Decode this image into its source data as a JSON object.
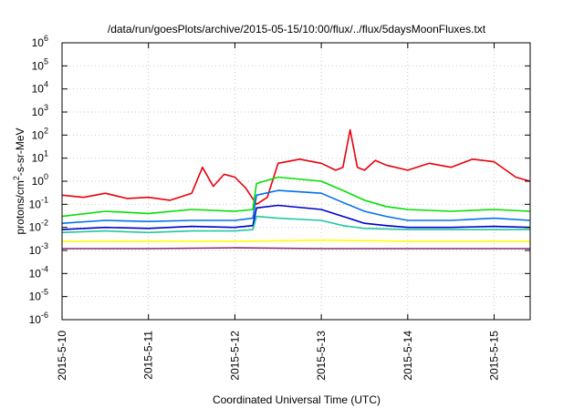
{
  "chart_data": {
    "type": "line",
    "title": "/data/run/goesPlots/archive/2015-05-15/10:00/flux/../flux/5daysMoonFluxes.txt",
    "xlabel": "Coordinated Universal Time (UTC)",
    "ylabel": "protons/cm²-s-sr-MeV",
    "ylabel_parts": {
      "base": "protons/cm",
      "sup": "2",
      "rest": "-s-sr-MeV"
    },
    "y_scale": "log",
    "ylim": [
      1e-06,
      1000000.0
    ],
    "y_ticks": [
      {
        "base": "10",
        "exp": "-6",
        "v": -6
      },
      {
        "base": "10",
        "exp": "-5",
        "v": -5
      },
      {
        "base": "10",
        "exp": "-4",
        "v": -4
      },
      {
        "base": "10",
        "exp": "-3",
        "v": -3
      },
      {
        "base": "10",
        "exp": "-2",
        "v": -2
      },
      {
        "base": "10",
        "exp": "-1",
        "v": -1
      },
      {
        "base": "10",
        "exp": "0",
        "v": 0
      },
      {
        "base": "10",
        "exp": "1",
        "v": 1
      },
      {
        "base": "10",
        "exp": "2",
        "v": 2
      },
      {
        "base": "10",
        "exp": "3",
        "v": 3
      },
      {
        "base": "10",
        "exp": "4",
        "v": 4
      },
      {
        "base": "10",
        "exp": "5",
        "v": 5
      },
      {
        "base": "10",
        "exp": "6",
        "v": 6
      }
    ],
    "x_range": [
      "2015-05-10 00:00",
      "2015-05-15 10:00"
    ],
    "x_ticks": [
      "2015-5-10",
      "2015-5-11",
      "2015-5-12",
      "2015-5-13",
      "2015-5-14",
      "2015-5-15"
    ],
    "grid": true,
    "legend": "none",
    "series": [
      {
        "color": "#e8000b",
        "x": [
          "2015-05-10 00:00",
          "2015-05-10 06:00",
          "2015-05-10 12:00",
          "2015-05-10 18:00",
          "2015-05-11 00:00",
          "2015-05-11 06:00",
          "2015-05-11 12:00",
          "2015-05-11 15:00",
          "2015-05-11 18:00",
          "2015-05-11 21:00",
          "2015-05-12 00:00",
          "2015-05-12 03:00",
          "2015-05-12 06:00",
          "2015-05-12 09:00",
          "2015-05-12 12:00",
          "2015-05-12 18:00",
          "2015-05-13 00:00",
          "2015-05-13 04:00",
          "2015-05-13 06:00",
          "2015-05-13 08:00",
          "2015-05-13 10:00",
          "2015-05-13 12:00",
          "2015-05-13 15:00",
          "2015-05-13 18:00",
          "2015-05-14 00:00",
          "2015-05-14 06:00",
          "2015-05-14 12:00",
          "2015-05-14 18:00",
          "2015-05-15 00:00",
          "2015-05-15 06:00",
          "2015-05-15 10:00"
        ],
        "y": [
          0.25,
          0.2,
          0.3,
          0.18,
          0.2,
          0.15,
          0.3,
          4.0,
          0.6,
          2.0,
          1.5,
          0.5,
          0.1,
          0.2,
          6.0,
          9.0,
          6.0,
          3.0,
          4.0,
          170,
          4.0,
          3.0,
          8.0,
          5.0,
          3.0,
          6.0,
          4.0,
          9.0,
          7.0,
          1.5,
          1.0
        ]
      },
      {
        "color": "#00e000",
        "x": [
          "2015-05-10 00:00",
          "2015-05-10 12:00",
          "2015-05-11 00:00",
          "2015-05-11 12:00",
          "2015-05-12 00:00",
          "2015-05-12 05:00",
          "2015-05-12 06:00",
          "2015-05-12 12:00",
          "2015-05-13 00:00",
          "2015-05-13 06:00",
          "2015-05-13 12:00",
          "2015-05-13 18:00",
          "2015-05-14 00:00",
          "2015-05-14 12:00",
          "2015-05-15 00:00",
          "2015-05-15 10:00"
        ],
        "y": [
          0.03,
          0.05,
          0.04,
          0.06,
          0.05,
          0.06,
          0.8,
          1.5,
          1.0,
          0.4,
          0.15,
          0.08,
          0.06,
          0.05,
          0.06,
          0.05
        ]
      },
      {
        "color": "#0070e8",
        "x": [
          "2015-05-10 00:00",
          "2015-05-10 12:00",
          "2015-05-11 00:00",
          "2015-05-11 12:00",
          "2015-05-12 00:00",
          "2015-05-12 05:00",
          "2015-05-12 06:00",
          "2015-05-12 12:00",
          "2015-05-13 00:00",
          "2015-05-13 06:00",
          "2015-05-13 12:00",
          "2015-05-13 18:00",
          "2015-05-14 00:00",
          "2015-05-14 12:00",
          "2015-05-15 00:00",
          "2015-05-15 10:00"
        ],
        "y": [
          0.015,
          0.02,
          0.018,
          0.02,
          0.02,
          0.025,
          0.25,
          0.4,
          0.3,
          0.12,
          0.05,
          0.03,
          0.02,
          0.02,
          0.025,
          0.02
        ]
      },
      {
        "color": "#0000c8",
        "x": [
          "2015-05-10 00:00",
          "2015-05-10 12:00",
          "2015-05-11 00:00",
          "2015-05-11 12:00",
          "2015-05-12 00:00",
          "2015-05-12 05:00",
          "2015-05-12 06:00",
          "2015-05-12 12:00",
          "2015-05-13 00:00",
          "2015-05-13 06:00",
          "2015-05-13 12:00",
          "2015-05-13 18:00",
          "2015-05-14 00:00",
          "2015-05-14 12:00",
          "2015-05-15 00:00",
          "2015-05-15 10:00"
        ],
        "y": [
          0.008,
          0.01,
          0.009,
          0.011,
          0.01,
          0.012,
          0.07,
          0.09,
          0.06,
          0.03,
          0.015,
          0.012,
          0.01,
          0.01,
          0.011,
          0.01
        ]
      },
      {
        "color": "#20c8a0",
        "x": [
          "2015-05-10 00:00",
          "2015-05-10 12:00",
          "2015-05-11 00:00",
          "2015-05-11 12:00",
          "2015-05-12 00:00",
          "2015-05-12 05:00",
          "2015-05-12 06:00",
          "2015-05-12 12:00",
          "2015-05-13 00:00",
          "2015-05-13 06:00",
          "2015-05-13 12:00",
          "2015-05-14 00:00",
          "2015-05-14 12:00",
          "2015-05-15 00:00",
          "2015-05-15 10:00"
        ],
        "y": [
          0.006,
          0.007,
          0.006,
          0.007,
          0.007,
          0.008,
          0.03,
          0.025,
          0.02,
          0.012,
          0.009,
          0.008,
          0.008,
          0.008,
          0.008
        ]
      },
      {
        "color": "#ffff00",
        "x": [
          "2015-05-10 00:00",
          "2015-05-11 00:00",
          "2015-05-12 00:00",
          "2015-05-13 00:00",
          "2015-05-14 00:00",
          "2015-05-15 00:00",
          "2015-05-15 10:00"
        ],
        "y": [
          0.0025,
          0.0025,
          0.0025,
          0.0028,
          0.0025,
          0.0025,
          0.0025
        ]
      },
      {
        "color": "#8b2a6c",
        "x": [
          "2015-05-10 00:00",
          "2015-05-11 00:00",
          "2015-05-12 00:00",
          "2015-05-13 00:00",
          "2015-05-14 00:00",
          "2015-05-15 00:00",
          "2015-05-15 10:00"
        ],
        "y": [
          0.0012,
          0.0012,
          0.0013,
          0.0012,
          0.0012,
          0.0012,
          0.0012
        ]
      }
    ]
  }
}
